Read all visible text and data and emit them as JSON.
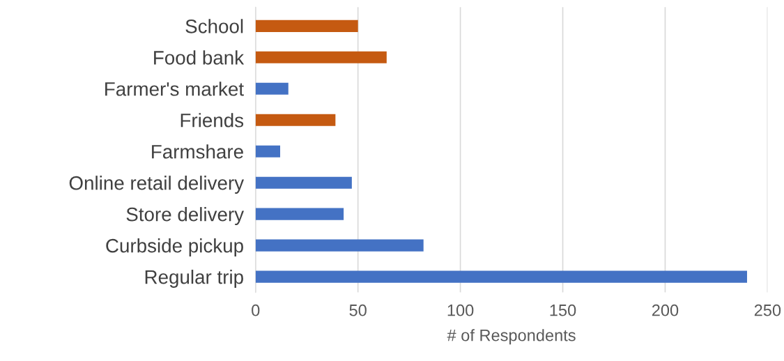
{
  "chart_data": {
    "type": "bar",
    "orientation": "horizontal",
    "xlabel": "# of Respondents",
    "categories": [
      "School",
      "Food bank",
      "Farmer's market",
      "Friends",
      "Farmshare",
      "Online retail delivery",
      "Store delivery",
      "Curbside pickup",
      "Regular trip"
    ],
    "values": [
      50,
      64,
      16,
      39,
      12,
      47,
      43,
      82,
      240
    ],
    "colors": [
      "#c55a11",
      "#c55a11",
      "#4472c4",
      "#c55a11",
      "#4472c4",
      "#4472c4",
      "#4472c4",
      "#4472c4",
      "#4472c4"
    ],
    "xlim": [
      0,
      250
    ],
    "xticks": [
      0,
      50,
      100,
      150,
      200,
      250
    ],
    "grid": "x"
  }
}
